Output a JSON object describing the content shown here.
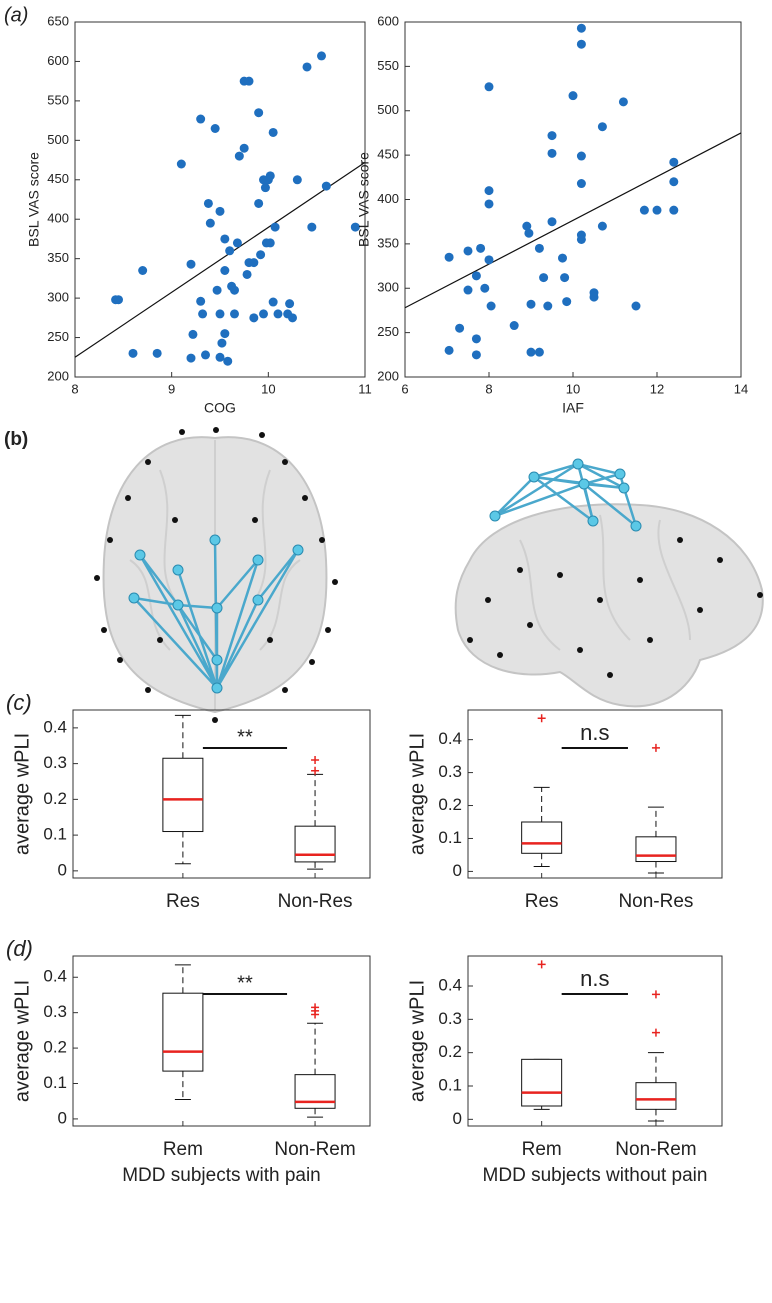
{
  "panel_labels": [
    "(a)",
    "(b)",
    "(c)",
    "(d)"
  ],
  "chart_data": [
    {
      "type": "scatter",
      "xlabel": "COG",
      "ylabel": "BSL VAS score",
      "color": "#1f6fbf",
      "xlim": [
        8,
        11
      ],
      "xticks": [
        8,
        9,
        10,
        11
      ],
      "ylim": [
        200,
        650
      ],
      "yticks": [
        200,
        250,
        300,
        350,
        400,
        450,
        500,
        550,
        600,
        650
      ],
      "x": [
        8.45,
        8.42,
        8.6,
        8.7,
        8.85,
        9.1,
        9.2,
        9.2,
        9.22,
        9.3,
        9.3,
        9.32,
        9.35,
        9.38,
        9.4,
        9.45,
        9.47,
        9.5,
        9.5,
        9.5,
        9.52,
        9.55,
        9.55,
        9.55,
        9.58,
        9.6,
        9.62,
        9.65,
        9.65,
        9.68,
        9.7,
        9.75,
        9.8,
        9.75,
        9.78,
        9.8,
        9.85,
        9.85,
        9.9,
        9.9,
        9.92,
        9.95,
        9.95,
        9.97,
        9.98,
        10.0,
        10.02,
        10.02,
        10.05,
        10.05,
        10.07,
        10.1,
        10.2,
        10.22,
        10.25,
        10.3,
        10.4,
        10.45,
        10.55,
        10.6,
        10.9
      ],
      "y": [
        298,
        298,
        230,
        335,
        230,
        470,
        343,
        224,
        254,
        296,
        527,
        280,
        228,
        420,
        395,
        515,
        310,
        225,
        410,
        280,
        243,
        375,
        335,
        255,
        220,
        360,
        315,
        310,
        280,
        370,
        480,
        575,
        575,
        490,
        330,
        345,
        275,
        345,
        420,
        535,
        355,
        450,
        280,
        440,
        370,
        450,
        455,
        370,
        510,
        295,
        390,
        280,
        280,
        293,
        275,
        450,
        593,
        390,
        607,
        442,
        390
      ],
      "fit_line": {
        "x": [
          8,
          11
        ],
        "y": [
          225,
          472
        ]
      }
    },
    {
      "type": "scatter",
      "xlabel": "IAF",
      "ylabel": "BSL VAS score",
      "color": "#1f6fbf",
      "xlim": [
        6,
        14
      ],
      "xticks": [
        6,
        8,
        10,
        12,
        14
      ],
      "ylim": [
        200,
        600
      ],
      "yticks": [
        200,
        250,
        300,
        350,
        400,
        450,
        500,
        550,
        600
      ],
      "x": [
        7.05,
        7.05,
        7.3,
        7.5,
        7.5,
        7.7,
        7.7,
        7.7,
        7.8,
        7.9,
        8.0,
        8.0,
        8.0,
        8.0,
        8.05,
        8.6,
        8.9,
        8.95,
        9.0,
        9.0,
        9.2,
        9.2,
        9.3,
        9.4,
        9.5,
        9.5,
        9.5,
        9.75,
        9.8,
        9.85,
        10.0,
        10.2,
        10.2,
        10.2,
        10.2,
        10.2,
        10.2,
        10.5,
        10.5,
        10.7,
        10.7,
        11.2,
        11.5,
        11.7,
        12.0,
        12.4,
        12.4,
        12.4
      ],
      "y": [
        335,
        230,
        255,
        298,
        342,
        225,
        243,
        314,
        345,
        300,
        527,
        410,
        395,
        332,
        280,
        258,
        370,
        362,
        282,
        228,
        228,
        345,
        312,
        280,
        472,
        452,
        375,
        334,
        312,
        285,
        517,
        593,
        575,
        449,
        418,
        360,
        355,
        295,
        290,
        482,
        370,
        510,
        280,
        388,
        388,
        442,
        420,
        388
      ],
      "fit_line": {
        "x": [
          6,
          14
        ],
        "y": [
          278,
          475
        ]
      }
    },
    {
      "type": "box",
      "ylabel": "average wPLI",
      "categories": [
        "Res",
        "Non-Res"
      ],
      "annotation": "**",
      "ylim": [
        -0.02,
        0.45
      ],
      "yticks": [
        0,
        0.1,
        0.2,
        0.3,
        0.4
      ],
      "median_color": "#e8231f",
      "outlier_color": "#e8231f",
      "boxes": [
        {
          "whislo": 0.02,
          "q1": 0.11,
          "median": 0.2,
          "q3": 0.315,
          "whishi": 0.435,
          "outliers": []
        },
        {
          "whislo": 0.005,
          "q1": 0.025,
          "median": 0.045,
          "q3": 0.125,
          "whishi": 0.27,
          "outliers": [
            0.28,
            0.31
          ]
        }
      ]
    },
    {
      "type": "box",
      "ylabel": "average wPLI",
      "categories": [
        "Res",
        "Non-Res"
      ],
      "annotation": "n.s",
      "ylim": [
        -0.02,
        0.49
      ],
      "yticks": [
        0,
        0.1,
        0.2,
        0.3,
        0.4
      ],
      "median_color": "#e8231f",
      "outlier_color": "#e8231f",
      "boxes": [
        {
          "whislo": 0.015,
          "q1": 0.055,
          "median": 0.085,
          "q3": 0.15,
          "whishi": 0.255,
          "outliers": [
            0.465
          ]
        },
        {
          "whislo": -0.005,
          "q1": 0.03,
          "median": 0.048,
          "q3": 0.105,
          "whishi": 0.195,
          "outliers": [
            0.375
          ]
        }
      ]
    },
    {
      "type": "box",
      "ylabel": "average wPLI",
      "xlabel": "MDD subjects with pain",
      "categories": [
        "Rem",
        "Non-Rem"
      ],
      "annotation": "**",
      "ylim": [
        -0.02,
        0.46
      ],
      "yticks": [
        0,
        0.1,
        0.2,
        0.3,
        0.4
      ],
      "median_color": "#e8231f",
      "outlier_color": "#e8231f",
      "boxes": [
        {
          "whislo": 0.055,
          "q1": 0.135,
          "median": 0.19,
          "q3": 0.355,
          "whishi": 0.435,
          "outliers": []
        },
        {
          "whislo": 0.005,
          "q1": 0.03,
          "median": 0.048,
          "q3": 0.125,
          "whishi": 0.27,
          "outliers": [
            0.295,
            0.305,
            0.315
          ]
        }
      ]
    },
    {
      "type": "box",
      "ylabel": "average wPLI",
      "xlabel": "MDD subjects without pain",
      "categories": [
        "Rem",
        "Non-Rem"
      ],
      "annotation": "n.s",
      "ylim": [
        -0.02,
        0.49
      ],
      "yticks": [
        0,
        0.1,
        0.2,
        0.3,
        0.4
      ],
      "median_color": "#e8231f",
      "outlier_color": "#e8231f",
      "boxes": [
        {
          "whislo": 0.03,
          "q1": 0.04,
          "median": 0.08,
          "q3": 0.18,
          "whishi": 0.18,
          "outliers": [
            0.465
          ]
        },
        {
          "whislo": -0.005,
          "q1": 0.03,
          "median": 0.06,
          "q3": 0.11,
          "whishi": 0.2,
          "outliers": [
            0.26,
            0.375
          ]
        }
      ]
    }
  ]
}
